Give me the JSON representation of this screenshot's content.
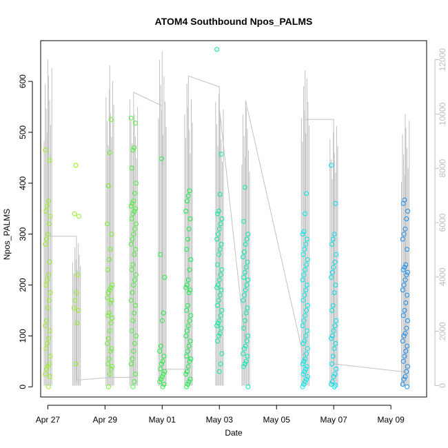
{
  "chart_data": {
    "type": "scatter",
    "title": "ATOM4 Southbound Npos_PALMS",
    "xlabel": "Date",
    "ylabel": "Npos_PALMS",
    "x_ticks": [
      "Apr 27",
      "Apr 29",
      "May 01",
      "May 03",
      "May 05",
      "May 07",
      "May 09"
    ],
    "y_ticks": [
      "0",
      "100",
      "200",
      "300",
      "400",
      "500",
      "600"
    ],
    "y2_ticks": [
      "0",
      "2000",
      "4000",
      "6000",
      "8000",
      "10000",
      "12000"
    ],
    "xlim": [
      "2023-04-26T18:00",
      "2023-05-10T06:00"
    ],
    "ylim": [
      -20,
      680
    ],
    "y2lim": [
      -420,
      12700
    ],
    "grid": false,
    "colors": {
      "points_gradient": [
        "#9aef1c",
        "#3de83d",
        "#00ee4a",
        "#00e8a0",
        "#00e8e8",
        "#0088ee"
      ],
      "lines": "#c0c0c0",
      "right_axis": "#bdbdbd"
    },
    "series": [
      {
        "x": [
          "04-27 00:00",
          "04-27 00:00",
          "04-27 00:00",
          "04-27 00:00",
          "04-27 00:00",
          "04-27 00:00",
          "04-27 00:00",
          "04-27 00:00",
          "04-27 00:00",
          "04-27 00:00",
          "04-27 00:00",
          "04-27 00:00",
          "04-27 00:00",
          "04-27 00:00",
          "04-27 00:00",
          "04-27 00:00",
          "04-27 00:00",
          "04-27 00:00",
          "04-27 00:00",
          "04-27 00:00",
          "04-27 00:00",
          "04-27 00:00",
          "04-27 00:00",
          "04-27 00:00",
          "04-27 00:00",
          "04-27 00:00",
          "04-27 00:00",
          "04-27 00:00",
          "04-27 00:00",
          "04-27 00:00"
        ],
        "y": [
          465,
          445,
          365,
          355,
          345,
          335,
          320,
          300,
          290,
          280,
          245,
          220,
          210,
          200,
          185,
          170,
          155,
          130,
          120,
          110,
          95,
          85,
          75,
          60,
          45,
          40,
          35,
          25,
          20,
          0
        ],
        "color": "#9aef1c"
      },
      {
        "x": [
          "04-28 00:00",
          "04-28 00:00",
          "04-28 00:00",
          "04-28 00:00",
          "04-28 00:00",
          "04-28 00:00",
          "04-28 00:00",
          "04-28 00:00",
          "04-28 00:00",
          "04-28 00:00"
        ],
        "y": [
          435,
          340,
          335,
          220,
          185,
          170,
          155,
          150,
          125,
          45
        ],
        "color": "#90ef1c"
      },
      {
        "x": [
          "04-29 04:00",
          "04-29 04:00",
          "04-29 04:00",
          "04-29 04:00",
          "04-29 04:00",
          "04-29 04:00",
          "04-29 04:00",
          "04-29 04:00",
          "04-29 04:00",
          "04-29 04:00",
          "04-29 04:00",
          "04-29 04:00",
          "04-29 04:00",
          "04-29 04:00",
          "04-29 04:00",
          "04-29 04:00",
          "04-29 04:00",
          "04-29 04:00",
          "04-29 04:00",
          "04-29 04:00",
          "04-29 04:00",
          "04-29 04:00",
          "04-29 04:00",
          "04-29 04:00",
          "04-29 04:00",
          "04-29 04:00",
          "04-29 04:00",
          "04-29 04:00",
          "04-29 04:00",
          "04-29 04:00"
        ],
        "y": [
          525,
          460,
          395,
          320,
          300,
          270,
          250,
          230,
          200,
          195,
          190,
          185,
          175,
          170,
          165,
          145,
          140,
          135,
          125,
          110,
          95,
          85,
          75,
          70,
          55,
          45,
          40,
          35,
          25,
          0
        ],
        "color": "#6ef02a"
      },
      {
        "x": [
          "04-30 00:00",
          "04-30 00:00",
          "04-30 00:00",
          "04-30 00:00",
          "04-30 00:00",
          "04-30 00:00",
          "04-30 00:00",
          "04-30 00:00",
          "04-30 00:00",
          "04-30 00:00",
          "04-30 00:00",
          "04-30 00:00",
          "04-30 00:00",
          "04-30 00:00",
          "04-30 00:00",
          "04-30 00:00",
          "04-30 00:00",
          "04-30 00:00",
          "04-30 00:00",
          "04-30 00:00",
          "04-30 00:00",
          "04-30 00:00",
          "04-30 00:00",
          "04-30 00:00",
          "04-30 00:00",
          "04-30 00:00",
          "04-30 00:00",
          "04-30 00:00",
          "04-30 00:00",
          "04-30 00:00",
          "04-30 00:00",
          "04-30 00:00",
          "04-30 00:00",
          "04-30 00:00",
          "04-30 00:00",
          "04-30 00:00",
          "04-30 00:00",
          "04-30 00:00",
          "04-30 00:00",
          "04-30 00:00"
        ],
        "y": [
          528,
          518,
          470,
          465,
          430,
          400,
          380,
          365,
          360,
          355,
          350,
          345,
          340,
          330,
          320,
          310,
          300,
          290,
          280,
          270,
          260,
          240,
          230,
          220,
          210,
          200,
          185,
          170,
          160,
          145,
          130,
          110,
          100,
          85,
          70,
          55,
          45,
          25,
          10,
          0
        ],
        "color": "#4aee3a"
      },
      {
        "x": [
          "05-01 00:00",
          "05-01 00:00",
          "05-01 00:00",
          "05-01 00:00",
          "05-01 00:00",
          "05-01 00:00",
          "05-01 00:00",
          "05-01 00:00",
          "05-01 00:00",
          "05-01 00:00",
          "05-01 00:00",
          "05-01 00:00",
          "05-01 00:00",
          "05-01 00:00",
          "05-01 00:00",
          "05-01 00:00",
          "05-01 00:00",
          "05-01 00:00"
        ],
        "y": [
          448,
          260,
          215,
          145,
          130,
          80,
          70,
          60,
          50,
          45,
          35,
          30,
          25,
          20,
          15,
          10,
          5,
          0
        ],
        "color": "#22ee40"
      },
      {
        "x": [
          "05-01 22:00",
          "05-01 22:00",
          "05-01 22:00",
          "05-01 22:00",
          "05-01 22:00",
          "05-01 22:00",
          "05-01 22:00",
          "05-01 22:00",
          "05-01 22:00",
          "05-01 22:00",
          "05-01 22:00",
          "05-01 22:00",
          "05-01 22:00",
          "05-01 22:00",
          "05-01 22:00",
          "05-01 22:00",
          "05-01 22:00",
          "05-01 22:00",
          "05-01 22:00",
          "05-01 22:00",
          "05-01 22:00",
          "05-01 22:00",
          "05-01 22:00",
          "05-01 22:00",
          "05-01 22:00",
          "05-01 22:00",
          "05-01 22:00",
          "05-01 22:00",
          "05-01 22:00",
          "05-01 22:00",
          "05-01 22:00",
          "05-01 22:00",
          "05-01 22:00",
          "05-01 22:00",
          "05-01 22:00"
        ],
        "y": [
          385,
          375,
          365,
          345,
          330,
          310,
          290,
          270,
          250,
          230,
          210,
          200,
          195,
          190,
          185,
          160,
          150,
          140,
          130,
          120,
          110,
          100,
          90,
          80,
          70,
          60,
          55,
          50,
          40,
          30,
          25,
          15,
          10,
          5,
          0
        ],
        "color": "#10ee48"
      },
      {
        "x": [
          "05-03 00:00",
          "05-03 00:00",
          "05-03 00:00",
          "05-03 00:00",
          "05-03 00:00",
          "05-03 00:00",
          "05-03 00:00",
          "05-03 00:00",
          "05-03 00:00",
          "05-03 00:00",
          "05-03 00:00",
          "05-03 00:00",
          "05-03 00:00",
          "05-03 00:00",
          "05-03 00:00",
          "05-03 00:00",
          "05-03 00:00",
          "05-03 00:00",
          "05-03 00:00",
          "05-03 00:00",
          "05-03 00:00",
          "05-03 00:00",
          "05-03 00:00",
          "05-03 00:00",
          "05-03 00:00",
          "05-03 00:00",
          "05-03 00:00",
          "05-03 00:00",
          "05-03 00:00",
          "05-03 00:00",
          "05-03 00:00",
          "05-03 00:00",
          "05-03 00:00",
          "05-03 00:00",
          "05-03 00:00"
        ],
        "y": [
          663,
          457,
          378,
          345,
          340,
          330,
          320,
          310,
          300,
          290,
          280,
          270,
          260,
          240,
          230,
          220,
          210,
          200,
          195,
          190,
          180,
          170,
          160,
          150,
          140,
          130,
          125,
          120,
          115,
          105,
          100,
          90,
          65,
          45,
          30
        ],
        "color": "#00eaa0"
      },
      {
        "x": [
          "05-03 22:00",
          "05-03 22:00",
          "05-03 22:00",
          "05-03 22:00",
          "05-03 22:00",
          "05-03 22:00",
          "05-03 22:00",
          "05-03 22:00",
          "05-03 22:00",
          "05-03 22:00",
          "05-03 22:00",
          "05-03 22:00",
          "05-03 22:00",
          "05-03 22:00",
          "05-03 22:00",
          "05-03 22:00",
          "05-03 22:00",
          "05-03 22:00",
          "05-03 22:00",
          "05-03 22:00",
          "05-03 22:00",
          "05-03 22:00",
          "05-03 22:00",
          "05-03 22:00",
          "05-03 22:00",
          "05-03 22:00",
          "05-03 22:00",
          "05-03 22:00",
          "05-03 22:00",
          "05-03 22:00"
        ],
        "y": [
          392,
          325,
          300,
          290,
          280,
          265,
          255,
          245,
          235,
          225,
          215,
          210,
          200,
          190,
          180,
          170,
          155,
          145,
          130,
          115,
          100,
          90,
          80,
          75,
          65,
          60,
          50,
          45,
          40,
          0
        ],
        "color": "#00e8b0"
      },
      {
        "x": [
          "05-06 00:00",
          "05-06 00:00",
          "05-06 00:00",
          "05-06 00:00",
          "05-06 00:00",
          "05-06 00:00",
          "05-06 00:00",
          "05-06 00:00",
          "05-06 00:00",
          "05-06 00:00",
          "05-06 00:00",
          "05-06 00:00",
          "05-06 00:00",
          "05-06 00:00",
          "05-06 00:00",
          "05-06 00:00",
          "05-06 00:00",
          "05-06 00:00",
          "05-06 00:00",
          "05-06 00:00",
          "05-06 00:00",
          "05-06 00:00",
          "05-06 00:00",
          "05-06 00:00",
          "05-06 00:00",
          "05-06 00:00",
          "05-06 00:00",
          "05-06 00:00",
          "05-06 00:00",
          "05-06 00:00",
          "05-06 00:00",
          "05-06 00:00",
          "05-06 00:00",
          "05-06 00:00",
          "05-06 00:00",
          "05-06 00:00",
          "05-06 00:00",
          "05-06 00:00",
          "05-06 00:00",
          "05-06 00:00"
        ],
        "y": [
          380,
          340,
          305,
          300,
          290,
          280,
          270,
          260,
          250,
          240,
          230,
          220,
          210,
          200,
          190,
          180,
          170,
          160,
          150,
          140,
          130,
          120,
          110,
          100,
          90,
          85,
          75,
          65,
          55,
          50,
          45,
          40,
          35,
          30,
          25,
          20,
          15,
          10,
          5,
          0
        ],
        "color": "#00e8e8"
      },
      {
        "x": [
          "05-07 00:00",
          "05-07 00:00",
          "05-07 00:00",
          "05-07 00:00",
          "05-07 00:00",
          "05-07 00:00",
          "05-07 00:00",
          "05-07 00:00",
          "05-07 00:00",
          "05-07 00:00",
          "05-07 00:00",
          "05-07 00:00",
          "05-07 00:00",
          "05-07 00:00",
          "05-07 00:00",
          "05-07 00:00",
          "05-07 00:00",
          "05-07 00:00",
          "05-07 00:00",
          "05-07 00:00",
          "05-07 00:00",
          "05-07 00:00",
          "05-07 00:00",
          "05-07 00:00",
          "05-07 00:00",
          "05-07 00:00",
          "05-07 00:00",
          "05-07 00:00",
          "05-07 00:00",
          "05-07 00:00"
        ],
        "y": [
          435,
          360,
          300,
          290,
          280,
          260,
          245,
          235,
          225,
          215,
          200,
          185,
          160,
          150,
          130,
          120,
          110,
          100,
          95,
          85,
          75,
          60,
          45,
          35,
          25,
          20,
          10,
          5,
          3,
          0
        ],
        "color": "#00dcec"
      },
      {
        "x": [
          "05-09 12:00",
          "05-09 12:00",
          "05-09 12:00",
          "05-09 12:00",
          "05-09 12:00",
          "05-09 12:00",
          "05-09 12:00",
          "05-09 12:00",
          "05-09 12:00",
          "05-09 12:00",
          "05-09 12:00",
          "05-09 12:00",
          "05-09 12:00",
          "05-09 12:00",
          "05-09 12:00",
          "05-09 12:00",
          "05-09 12:00",
          "05-09 12:00",
          "05-09 12:00",
          "05-09 12:00",
          "05-09 12:00",
          "05-09 12:00",
          "05-09 12:00",
          "05-09 12:00",
          "05-09 12:00",
          "05-09 12:00",
          "05-09 12:00",
          "05-09 12:00",
          "05-09 12:00",
          "05-09 12:00",
          "05-09 12:00",
          "05-09 12:00",
          "05-09 12:00",
          "05-09 12:00",
          "05-09 12:00"
        ],
        "y": [
          367,
          360,
          345,
          330,
          310,
          300,
          290,
          270,
          240,
          235,
          230,
          225,
          220,
          210,
          200,
          190,
          180,
          165,
          150,
          140,
          130,
          115,
          105,
          100,
          90,
          80,
          70,
          60,
          50,
          40,
          30,
          20,
          15,
          5,
          0
        ],
        "color": "#1a8cee"
      }
    ],
    "y2_series": {
      "x": [
        "04-27 00:00",
        "04-27 00:00",
        "04-27 00:00",
        "04-28 00:00",
        "04-28 00:00",
        "04-29 04:00",
        "04-29 04:00",
        "04-29 04:00",
        "04-30 00:00",
        "04-30 00:00",
        "05-01 00:00",
        "05-01 00:00",
        "05-01 00:00",
        "05-01 22:00",
        "05-01 22:00",
        "05-03 00:00",
        "05-03 00:00",
        "05-03 00:00",
        "05-03 22:00",
        "05-03 22:00",
        "05-06 00:00",
        "05-06 00:00",
        "05-06 00:00",
        "05-07 00:00",
        "05-07 00:00",
        "05-09 12:00",
        "05-09 12:00"
      ],
      "y": [
        300,
        12000,
        5500,
        5500,
        200,
        300,
        11800,
        300,
        300,
        10800,
        10300,
        12300,
        600,
        600,
        11400,
        11000,
        1800,
        10200,
        1500,
        10500,
        800,
        11600,
        9800,
        9800,
        800,
        500,
        10000
      ],
      "color": "#c0c0c0"
    }
  }
}
